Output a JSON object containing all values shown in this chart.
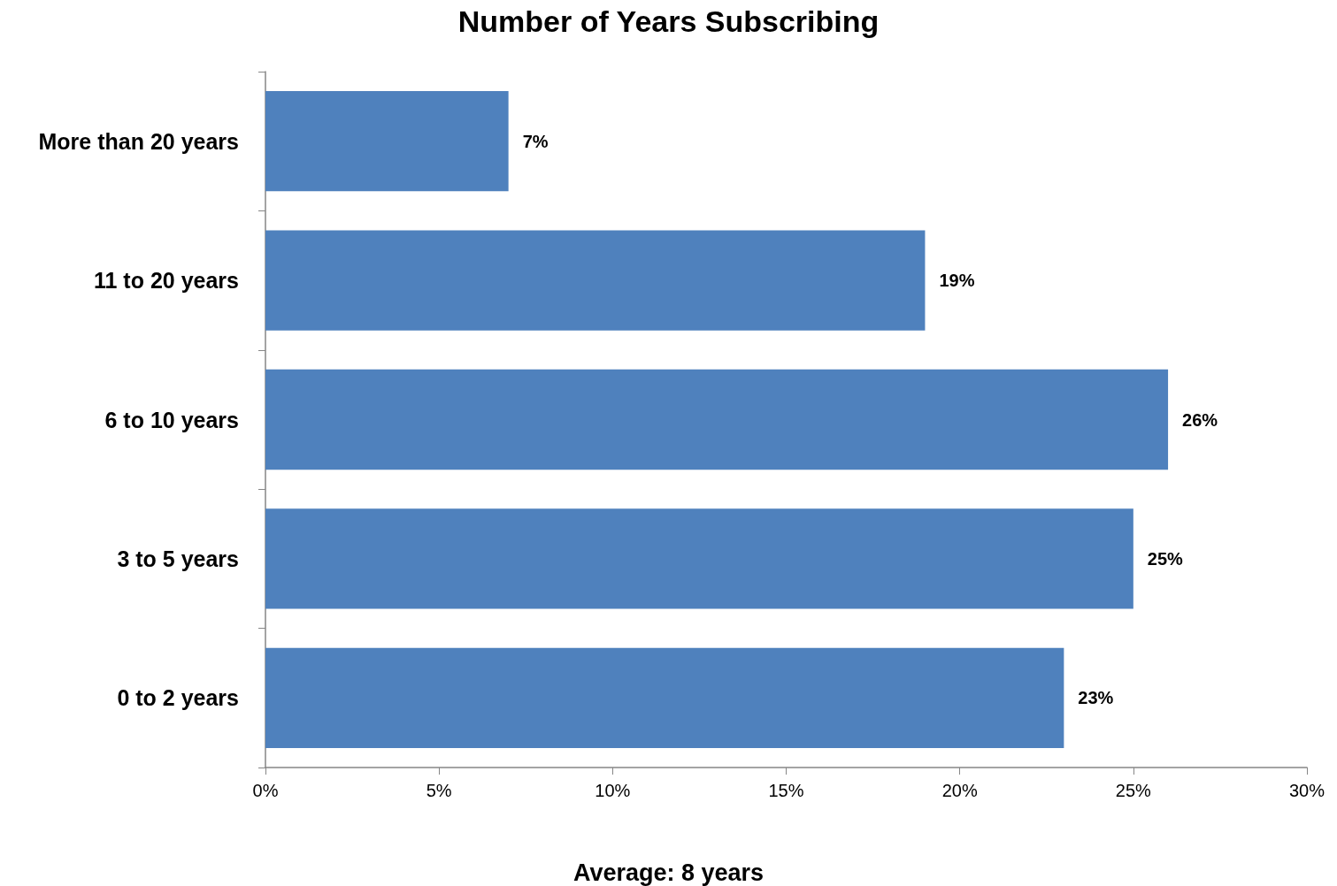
{
  "chart_data": {
    "type": "bar",
    "orientation": "horizontal",
    "title": "Number of Years Subscribing",
    "categories": [
      "More than 20 years",
      "11 to 20 years",
      "6 to 10 years",
      "3 to 5 years",
      "0 to 2 years"
    ],
    "values": [
      7,
      19,
      26,
      25,
      23
    ],
    "value_labels": [
      "7%",
      "19%",
      "26%",
      "25%",
      "23%"
    ],
    "color": "#4f81bd",
    "xlim": [
      0,
      30
    ],
    "xticks": [
      {
        "value": 0,
        "label": "0%"
      },
      {
        "value": 5,
        "label": "5%"
      },
      {
        "value": 10,
        "label": "10%"
      },
      {
        "value": 15,
        "label": "15%"
      },
      {
        "value": 20,
        "label": "20%"
      },
      {
        "value": 25,
        "label": "25%"
      },
      {
        "value": 30,
        "label": "30%"
      }
    ],
    "grid": false,
    "annotations": [
      "Average: 8 years"
    ]
  }
}
